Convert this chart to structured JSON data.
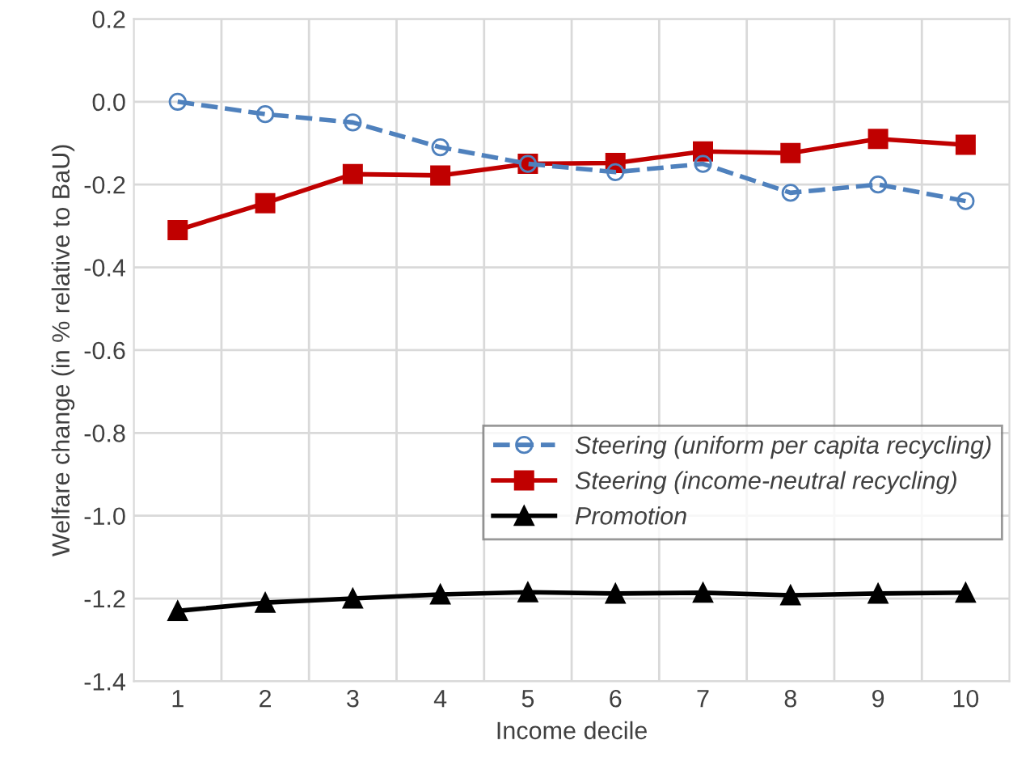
{
  "chart_data": {
    "type": "line",
    "xlabel": "Income decile",
    "ylabel": "Welfare change (in % relative to BaU)",
    "categories": [
      "1",
      "2",
      "3",
      "4",
      "5",
      "6",
      "7",
      "8",
      "9",
      "10"
    ],
    "series": [
      {
        "name": "Steering (uniform per capita recycling)",
        "color": "#4f81bd",
        "marker": "circle",
        "line_style": "dashed",
        "values": [
          0.0,
          -0.03,
          -0.05,
          -0.11,
          -0.15,
          -0.17,
          -0.15,
          -0.22,
          -0.2,
          -0.24
        ]
      },
      {
        "name": "Steering (income-neutral recycling)",
        "color": "#c00000",
        "marker": "square",
        "line_style": "solid",
        "values": [
          -0.31,
          -0.245,
          -0.175,
          -0.178,
          -0.15,
          -0.148,
          -0.12,
          -0.124,
          -0.09,
          -0.104
        ]
      },
      {
        "name": "Promotion",
        "color": "#000000",
        "marker": "triangle",
        "line_style": "solid",
        "values": [
          -1.23,
          -1.21,
          -1.2,
          -1.19,
          -1.185,
          -1.188,
          -1.186,
          -1.192,
          -1.188,
          -1.186
        ]
      }
    ],
    "ylim": [
      -1.4,
      0.2
    ],
    "yticks": [
      {
        "value": -1.4,
        "label": "-1.4"
      },
      {
        "value": -1.2,
        "label": "-1.2"
      },
      {
        "value": -1.0,
        "label": "-1.0"
      },
      {
        "value": -0.8,
        "label": "-0.8"
      },
      {
        "value": -0.6,
        "label": "-0.6"
      },
      {
        "value": -0.4,
        "label": "-0.4"
      },
      {
        "value": -0.2,
        "label": "-0.2"
      },
      {
        "value": 0.0,
        "label": "0.0"
      },
      {
        "value": 0.2,
        "label": "0.2"
      }
    ],
    "grid": true,
    "legend": "right"
  }
}
